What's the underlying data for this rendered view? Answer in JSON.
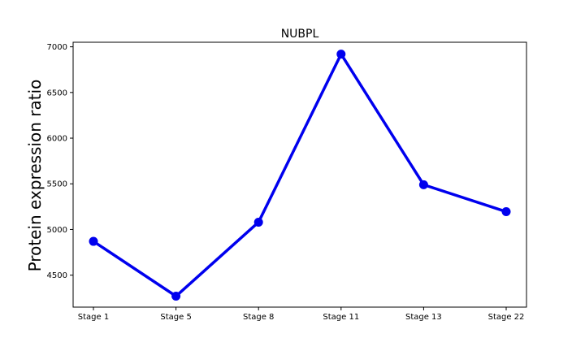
{
  "chart_data": {
    "type": "line",
    "title": "NUBPL",
    "xlabel": "",
    "ylabel": "Protein expression ratio",
    "categories": [
      "Stage 1",
      "Stage 5",
      "Stage 8",
      "Stage 11",
      "Stage 13",
      "Stage 22"
    ],
    "series": [
      {
        "values": [
          4870,
          4270,
          5080,
          6920,
          5490,
          5195
        ],
        "color": "#0000ee"
      }
    ],
    "ylim": [
      4150,
      7050
    ],
    "yticks": [
      4500,
      5000,
      5500,
      6000,
      6500,
      7000
    ],
    "grid": false,
    "legend": "none"
  }
}
